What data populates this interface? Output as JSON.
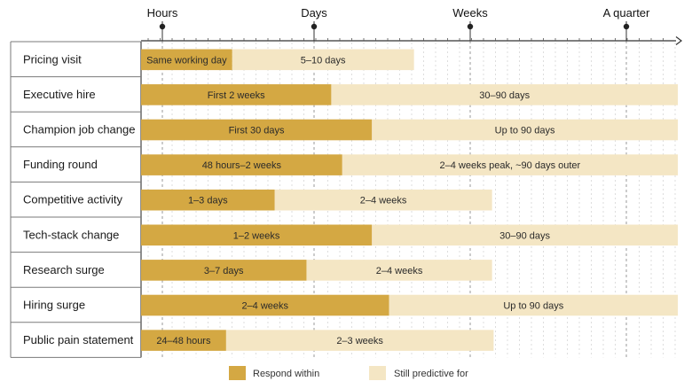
{
  "chart_data": {
    "type": "bar",
    "orientation": "horizontal-timeline",
    "title": "",
    "xlabel": "",
    "ylabel": "",
    "axis_ticks": [
      "Hours",
      "Days",
      "Weeks",
      "A quarter"
    ],
    "grid": true,
    "legend_position": "bottom",
    "series": [
      {
        "name": "Respond within",
        "color": "#d4a843"
      },
      {
        "name": "Still predictive for",
        "color": "#f4e6c4"
      }
    ],
    "rows": [
      {
        "label": "Pricing visit",
        "respond": "Same working day",
        "respond_end": 0.46,
        "predictive": "5–10 days",
        "predictive_end": 1.64
      },
      {
        "label": "Executive hire",
        "respond": "First 2 weeks",
        "respond_end": 1.11,
        "predictive": "30–90 days",
        "predictive_end": 3.33
      },
      {
        "label": "Champion job change",
        "respond": "First 30 days",
        "respond_end": 1.37,
        "predictive": "Up to 90 days",
        "predictive_end": 3.33
      },
      {
        "label": "Funding round",
        "respond": "48 hours–2 weeks",
        "respond_end": 1.18,
        "predictive": "2–4 weeks peak, ~90 days outer",
        "predictive_end": 3.33
      },
      {
        "label": "Competitive activity",
        "respond": "1–3 days",
        "respond_end": 0.74,
        "predictive": "2–4 weeks",
        "predictive_end": 2.14
      },
      {
        "label": "Tech-stack change",
        "respond": "1–2 weeks",
        "respond_end": 1.37,
        "predictive": "30–90 days",
        "predictive_end": 3.33
      },
      {
        "label": "Research surge",
        "respond": "3–7 days",
        "respond_end": 0.95,
        "predictive": "2–4 weeks",
        "predictive_end": 2.14
      },
      {
        "label": "Hiring surge",
        "respond": "2–4 weeks",
        "respond_end": 1.48,
        "predictive": "Up to 90 days",
        "predictive_end": 3.33
      },
      {
        "label": "Public pain statement",
        "respond": "24–48 hours",
        "respond_end": 0.42,
        "predictive": "2–3 weeks",
        "predictive_end": 2.15
      }
    ]
  }
}
